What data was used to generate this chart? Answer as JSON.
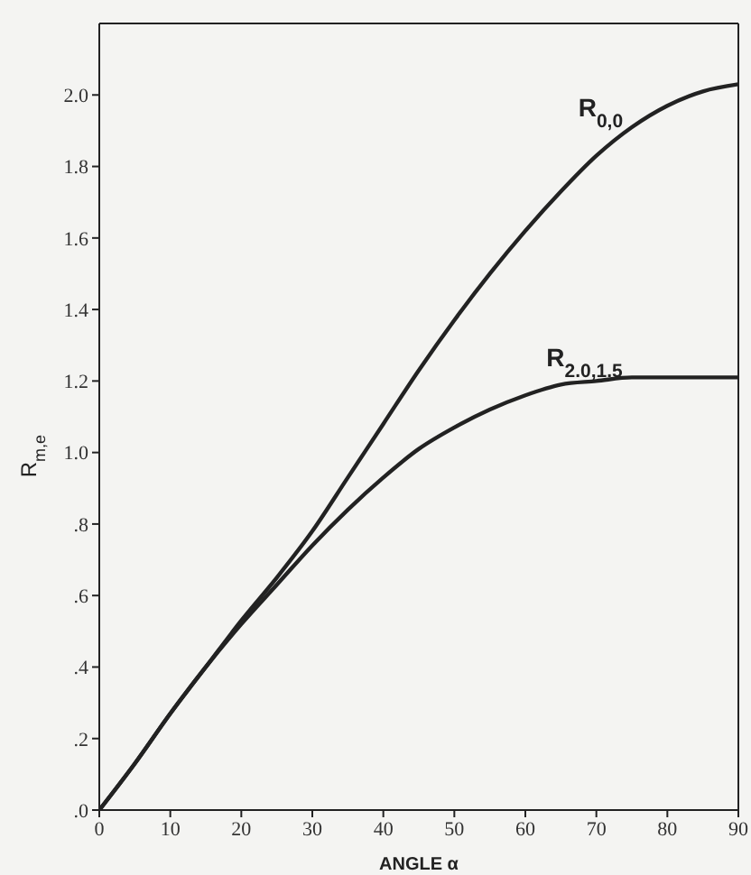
{
  "chart_data": {
    "type": "line",
    "xlabel": "ANGLE α",
    "ylabel": "R$_{m,e}$",
    "x": [
      0,
      5,
      10,
      15,
      20,
      25,
      30,
      35,
      40,
      45,
      50,
      55,
      60,
      65,
      70,
      75,
      80,
      85,
      90
    ],
    "series": [
      {
        "name": "R$_{0,0}$",
        "color": "#222222",
        "values": [
          0,
          0.13,
          0.27,
          0.4,
          0.53,
          0.65,
          0.78,
          0.93,
          1.08,
          1.23,
          1.37,
          1.5,
          1.62,
          1.73,
          1.83,
          1.91,
          1.97,
          2.01,
          2.03
        ]
      },
      {
        "name": "R$_{2.0,1.5}$",
        "color": "#222222",
        "values": [
          0,
          0.13,
          0.27,
          0.4,
          0.52,
          0.63,
          0.74,
          0.84,
          0.93,
          1.01,
          1.07,
          1.12,
          1.16,
          1.19,
          1.2,
          1.21,
          1.21,
          1.21,
          1.21
        ]
      }
    ],
    "xlim": [
      0,
      90
    ],
    "xticks": [
      0,
      10,
      20,
      30,
      40,
      50,
      60,
      70,
      80,
      90
    ],
    "ylim": [
      0,
      2.2
    ],
    "yticks": [
      {
        "value": 0,
        "label": ".0"
      },
      {
        "value": 0.2,
        "label": ".2"
      },
      {
        "value": 0.4,
        "label": ".4"
      },
      {
        "value": 0.6,
        "label": ".6"
      },
      {
        "value": 0.8,
        "label": ".8"
      },
      {
        "value": 1.0,
        "label": "1.0"
      },
      {
        "value": 1.2,
        "label": "1.2"
      },
      {
        "value": 1.4,
        "label": "1.4"
      },
      {
        "value": 1.6,
        "label": "1.6"
      },
      {
        "value": 1.8,
        "label": "1.8"
      },
      {
        "value": 2.0,
        "label": "2.0"
      }
    ],
    "grid": false,
    "marker": "none",
    "line_style": "solid",
    "legend": false
  }
}
